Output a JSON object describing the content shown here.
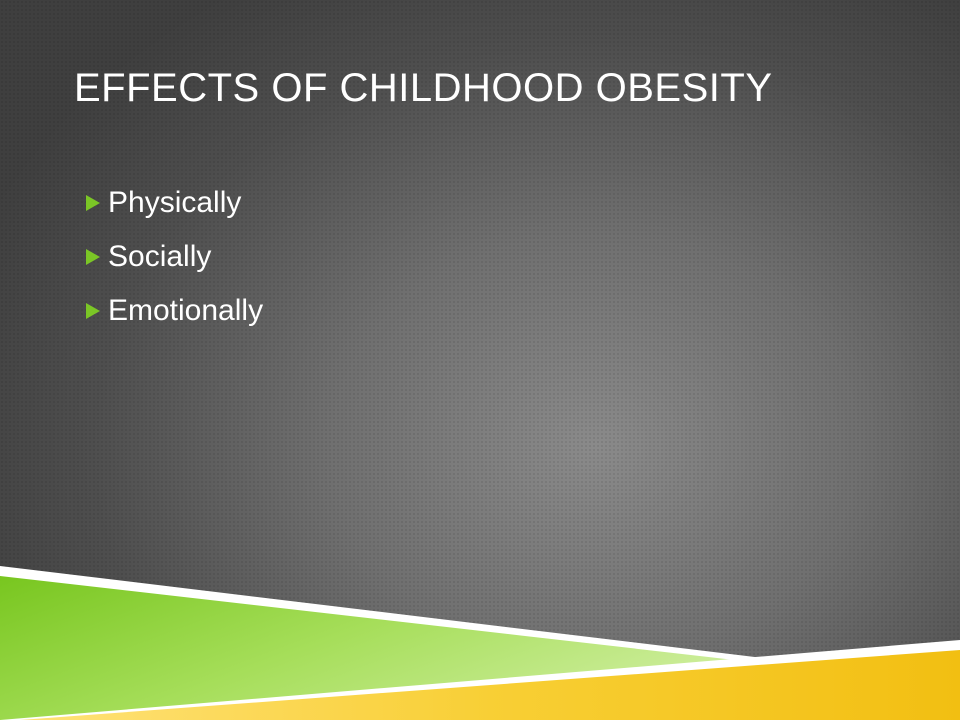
{
  "slide": {
    "title": "EFFECTS OF CHILDHOOD OBESITY",
    "bullets": [
      {
        "label": "Physically"
      },
      {
        "label": "Socially"
      },
      {
        "label": "Emotionally"
      }
    ],
    "bullet_marker_icon": "triangle-right-icon",
    "colors": {
      "title_text": "#ffffff",
      "bullet_marker": "#7bc626",
      "green_band": "#8fd13a",
      "yellow_band": "#f5c518",
      "white_stripe": "#ffffff"
    }
  }
}
